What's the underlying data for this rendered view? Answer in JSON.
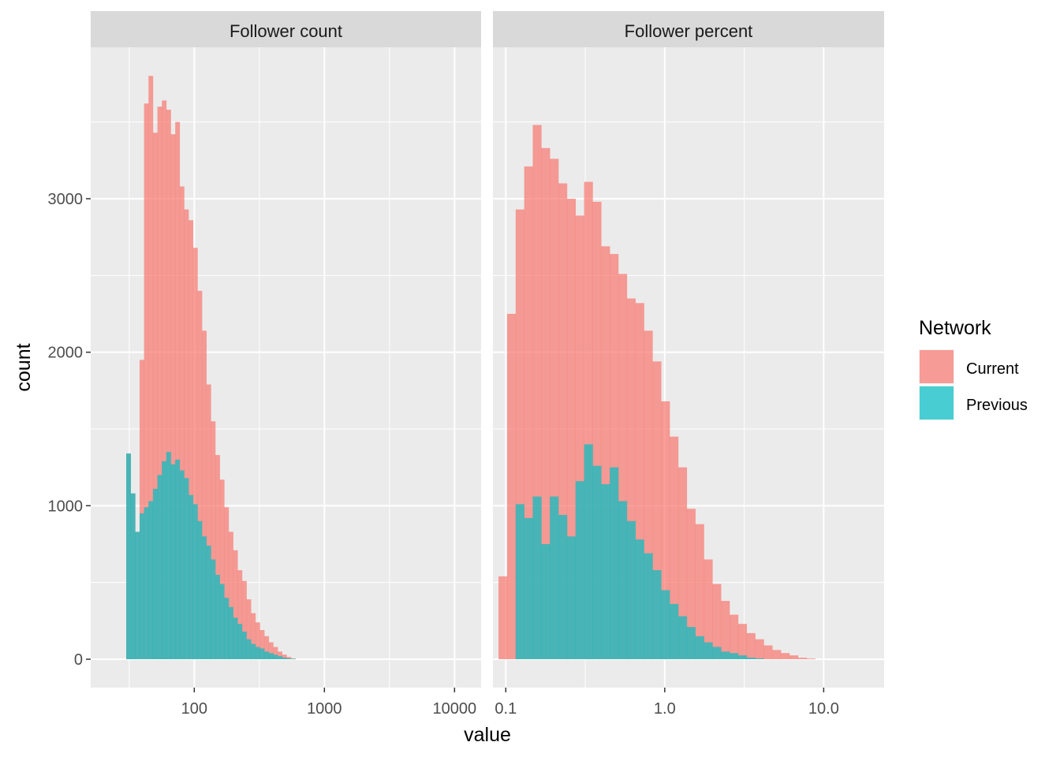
{
  "chart_data": {
    "type": "histogram-facet",
    "xlabel": "value",
    "ylabel": "count",
    "ylim": [
      0,
      4000
    ],
    "yticks": [
      0,
      1000,
      2000,
      3000
    ],
    "ytick_labels": [
      "0",
      "1000",
      "2000",
      "3000"
    ],
    "grid": true,
    "legend": {
      "title": "Network",
      "placement": "right",
      "entries": [
        {
          "label": "Current",
          "color": "#F8766D"
        },
        {
          "label": "Previous",
          "color": "#00BFC4"
        }
      ]
    },
    "series_names": [
      "Current",
      "Previous"
    ],
    "colors": {
      "Current": "#F8766D",
      "Previous": "#00BFC4",
      "panel_bg": "#EBEBEB",
      "strip_bg": "#D9D9D9"
    },
    "bar_alpha": 0.7,
    "panels": [
      {
        "title": "Follower count",
        "x_scale": "log10",
        "xlim": [
          16,
          16000
        ],
        "xticks": [
          100,
          1000,
          10000
        ],
        "xtick_labels": [
          "100",
          "1000",
          "10000"
        ],
        "bin_edges": [
          30,
          2900
        ],
        "bins": 58,
        "series": [
          {
            "name": "Current",
            "values": [
              1340,
              1080,
              830,
              1950,
              3620,
              3800,
              3430,
              3600,
              3640,
              3580,
              3420,
              3500,
              3080,
              2930,
              2860,
              2680,
              2400,
              2140,
              1790,
              1550,
              1330,
              1170,
              990,
              830,
              710,
              580,
              510,
              390,
              300,
              240,
              190,
              150,
              110,
              80,
              50,
              30,
              15,
              5,
              0,
              0,
              0,
              0,
              0,
              0,
              0,
              0,
              0,
              0,
              0,
              0,
              0,
              0,
              0,
              0,
              0,
              0,
              0,
              0
            ]
          },
          {
            "name": "Previous",
            "values": [
              1340,
              1080,
              830,
              950,
              990,
              1030,
              1110,
              1200,
              1290,
              1350,
              1270,
              1300,
              1230,
              1180,
              1070,
              1010,
              900,
              800,
              740,
              650,
              550,
              490,
              400,
              340,
              270,
              230,
              180,
              130,
              100,
              80,
              70,
              50,
              40,
              30,
              20,
              10,
              5,
              3,
              0,
              0,
              0,
              0,
              0,
              0,
              0,
              0,
              0,
              0,
              0,
              0,
              0,
              0,
              0,
              0,
              0,
              0,
              0,
              0
            ]
          }
        ]
      },
      {
        "title": "Follower percent",
        "x_scale": "log10",
        "xlim": [
          0.083,
          24
        ],
        "xticks": [
          0.1,
          1.0,
          10.0
        ],
        "xtick_labels": [
          "0.1",
          "1.0",
          "10.0"
        ],
        "bin_edges": [
          0.09,
          10.0
        ],
        "bins": 38,
        "series": [
          {
            "name": "Current",
            "values": [
              540,
              2250,
              2930,
              3210,
              3480,
              3330,
              3260,
              3100,
              3000,
              2890,
              3110,
              2980,
              2690,
              2640,
              2510,
              2350,
              2320,
              2140,
              1940,
              1680,
              1450,
              1250,
              980,
              880,
              650,
              490,
              380,
              290,
              230,
              170,
              130,
              90,
              60,
              40,
              25,
              10,
              5,
              0
            ]
          },
          {
            "name": "Previous",
            "values": [
              0,
              0,
              1010,
              920,
              1060,
              750,
              1060,
              940,
              800,
              1160,
              1400,
              1260,
              1140,
              1250,
              1030,
              900,
              780,
              690,
              580,
              450,
              360,
              280,
              210,
              150,
              110,
              80,
              50,
              40,
              25,
              10,
              5,
              0,
              0,
              0,
              0,
              0,
              0,
              0
            ]
          }
        ]
      }
    ]
  }
}
